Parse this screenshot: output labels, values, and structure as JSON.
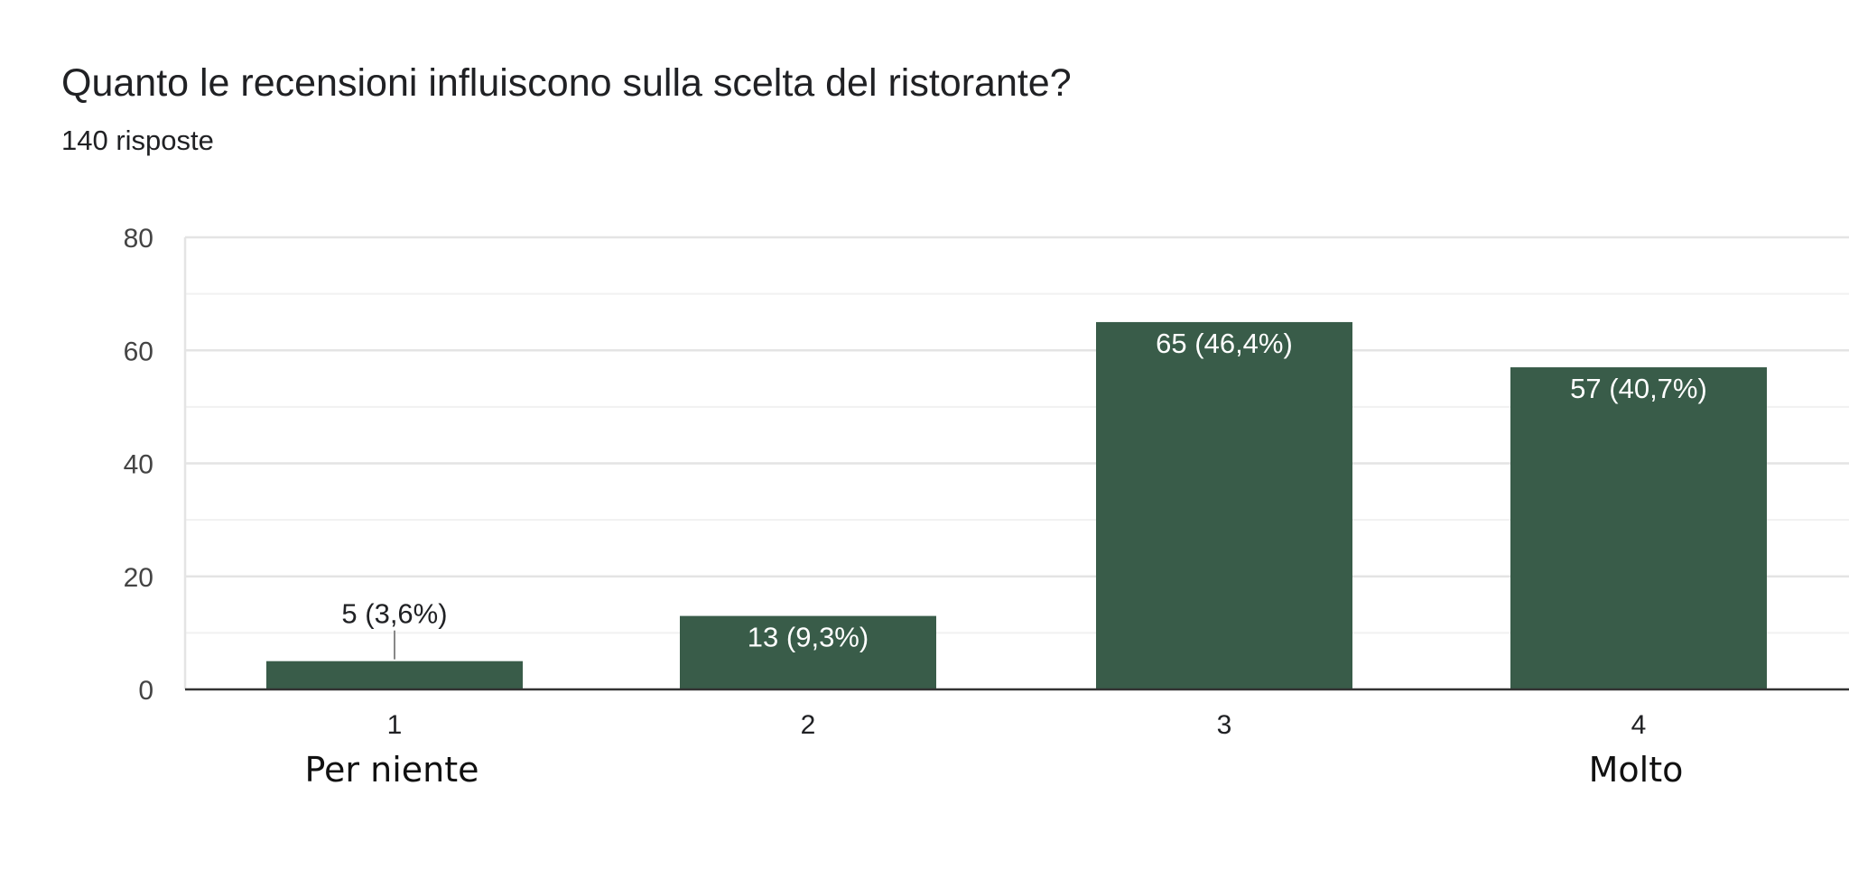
{
  "header": {
    "title": "Quanto le recensioni influiscono sulla scelta del ristorante?",
    "responses": "140 risposte"
  },
  "colors": {
    "bar": "#395c49",
    "axis": "#333333",
    "grid": "#e8e8e8",
    "text": "#202124",
    "tick_text": "#444444",
    "label_inside": "#ffffff"
  },
  "chart_data": {
    "type": "bar",
    "title": "Quanto le recensioni influiscono sulla scelta del ristorante?",
    "categories": [
      "1",
      "2",
      "3",
      "4"
    ],
    "category_sublabels": [
      "Per niente",
      "",
      "",
      "Molto"
    ],
    "values": [
      5,
      13,
      65,
      57
    ],
    "data_labels": [
      "5 (3,6%)",
      "13 (9,3%)",
      "65 (46,4%)",
      "57 (40,7%)"
    ],
    "yticks": [
      "0",
      "20",
      "40",
      "60",
      "80"
    ],
    "ylim": [
      0,
      80
    ],
    "grid": true,
    "xlabel": "",
    "ylabel": ""
  }
}
